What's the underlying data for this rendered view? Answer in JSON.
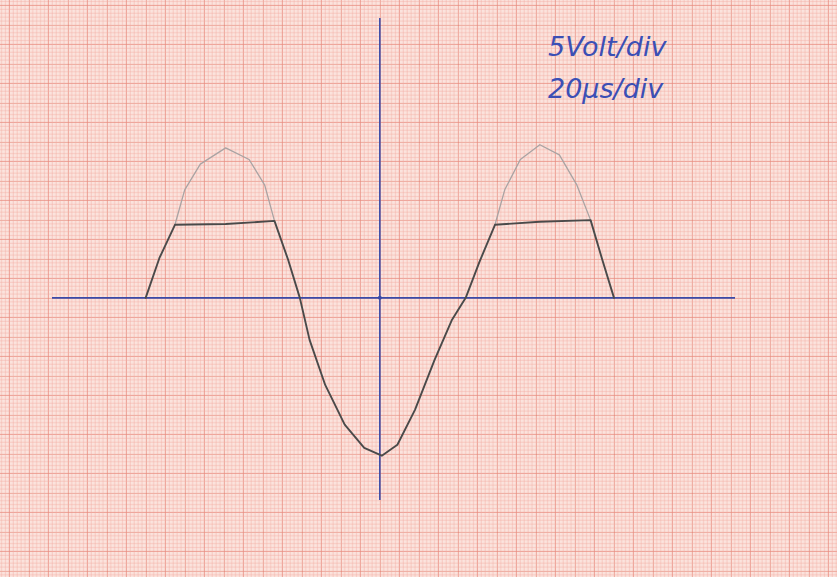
{
  "chart_data": {
    "type": "line",
    "annotations": [
      "5Volt/div",
      "20µs/div"
    ],
    "xlim": [
      -168,
      182
    ],
    "ylim": [
      -26,
      36
    ],
    "tick_labels": false,
    "series": [
      {
        "color": "#4a4a4a",
        "line_style": "solid",
        "x": [
          -120,
          -113,
          -105,
          -79,
          -54,
          -47,
          -41,
          -36,
          -28,
          -18,
          -8,
          1,
          9,
          18,
          28,
          37,
          44,
          51,
          59,
          82,
          108,
          114,
          120
        ],
        "values": [
          0,
          5.1,
          9.4,
          9.5,
          9.9,
          4.9,
          0,
          -5.4,
          -11.2,
          -16.3,
          -19.3,
          -20.3,
          -18.9,
          -14.4,
          -8.0,
          -2.8,
          0,
          4.6,
          9.4,
          9.8,
          10.0,
          4.9,
          0
        ]
      },
      {
        "color": "#a9a3a3",
        "line_style": "solid",
        "x": [
          -105,
          -100,
          -92,
          -79,
          -67,
          -59,
          -54,
          0,
          59,
          64,
          72,
          82,
          92,
          101,
          108
        ],
        "values": [
          9.4,
          13.9,
          17.2,
          19.3,
          17.8,
          14.5,
          9.9,
          null,
          9.4,
          13.9,
          17.8,
          19.7,
          18.4,
          14.5,
          10.0
        ]
      }
    ]
  }
}
